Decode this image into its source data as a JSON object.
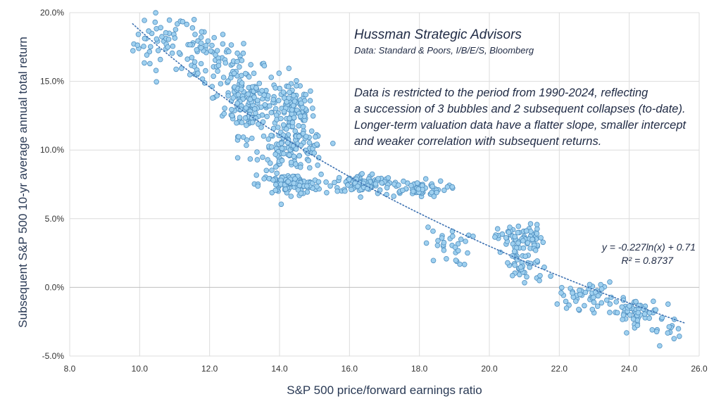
{
  "chart_data": {
    "type": "scatter",
    "xlabel": "S&P 500 price/forward earnings ratio",
    "ylabel": "Subsequent S&P 500 10-yr average annual total return",
    "xlim": [
      8,
      26
    ],
    "ylim": [
      -0.05,
      0.2
    ],
    "x_ticks": [
      "8.0",
      "10.0",
      "12.0",
      "14.0",
      "16.0",
      "18.0",
      "20.0",
      "22.0",
      "24.0",
      "26.0"
    ],
    "y_ticks": [
      "-5.0%",
      "0.0%",
      "5.0%",
      "10.0%",
      "15.0%",
      "20.0%"
    ],
    "grid": "vertical and horizontal",
    "colors": {
      "point_fill": "#9fd0ef",
      "point_stroke": "#4f8fc0",
      "trend": "#3a6fb0"
    },
    "annotations": {
      "source_title": "Hussman Strategic Advisors",
      "source_data": "Data: Standard & Poors, I/B/E/S, Bloomberg",
      "note_lines": [
        "Data is restricted to the period from 1990-2024, reflecting",
        "a succession of 3 bubbles and 2 subsequent collapses (to-date).",
        "Longer-term valuation data have a flatter slope, smaller intercept",
        "and weaker correlation with subsequent returns."
      ],
      "equation": "y = -0.227ln(x) + 0.71",
      "r_squared": "R² = 0.8737"
    },
    "trendline": {
      "form": "logarithmic",
      "a": -0.227,
      "b": 0.71,
      "x_range": [
        9.8,
        25.6
      ]
    },
    "clusters": [
      {
        "center": [
          10.6,
          0.178
        ],
        "spread": [
          0.7,
          0.018
        ],
        "n": 45
      },
      {
        "center": [
          11.8,
          0.168
        ],
        "spread": [
          0.7,
          0.018
        ],
        "n": 55
      },
      {
        "center": [
          12.6,
          0.158
        ],
        "spread": [
          0.45,
          0.022
        ],
        "n": 40
      },
      {
        "center": [
          13.2,
          0.135
        ],
        "spread": [
          0.7,
          0.02
        ],
        "n": 150
      },
      {
        "center": [
          14.4,
          0.128
        ],
        "spread": [
          0.55,
          0.016
        ],
        "n": 110
      },
      {
        "center": [
          14.4,
          0.1
        ],
        "spread": [
          0.85,
          0.012
        ],
        "n": 110
      },
      {
        "center": [
          14.3,
          0.075
        ],
        "spread": [
          0.8,
          0.006
        ],
        "n": 110
      },
      {
        "center": [
          16.4,
          0.076
        ],
        "spread": [
          0.8,
          0.006
        ],
        "n": 85
      },
      {
        "center": [
          17.9,
          0.072
        ],
        "spread": [
          0.8,
          0.005
        ],
        "n": 65
      },
      {
        "center": [
          18.8,
          0.03
        ],
        "spread": [
          0.6,
          0.012
        ],
        "n": 30
      },
      {
        "center": [
          20.9,
          0.036
        ],
        "spread": [
          0.6,
          0.008
        ],
        "n": 70
      },
      {
        "center": [
          21.0,
          0.015
        ],
        "spread": [
          0.6,
          0.012
        ],
        "n": 45
      },
      {
        "center": [
          22.8,
          -0.006
        ],
        "spread": [
          0.7,
          0.008
        ],
        "n": 45
      },
      {
        "center": [
          24.1,
          -0.018
        ],
        "spread": [
          0.7,
          0.008
        ],
        "n": 60
      },
      {
        "center": [
          25.0,
          -0.03
        ],
        "spread": [
          0.45,
          0.008
        ],
        "n": 15
      }
    ]
  }
}
